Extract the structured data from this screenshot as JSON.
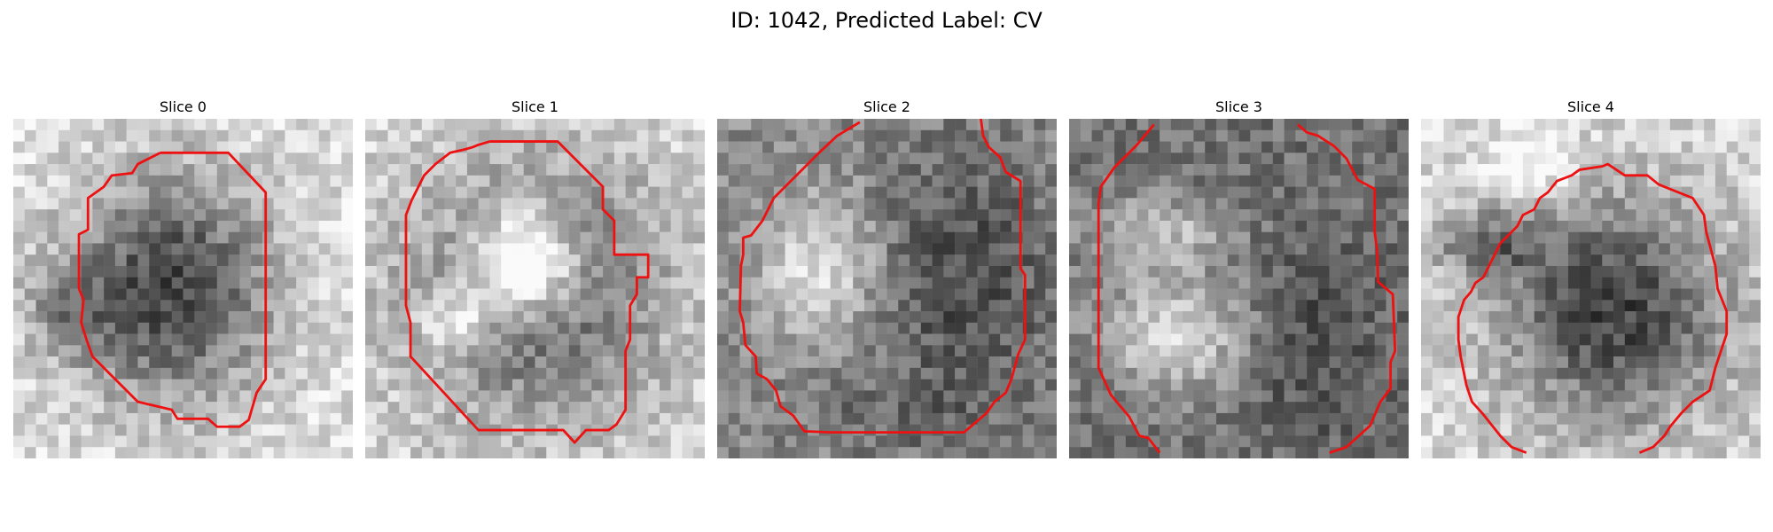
{
  "figure": {
    "title": "ID: 1042, Predicted Label: CV"
  },
  "slices": [
    {
      "label": "Slice 0"
    },
    {
      "label": "Slice 1"
    },
    {
      "label": "Slice 2"
    },
    {
      "label": "Slice 3"
    },
    {
      "label": "Slice 4"
    }
  ],
  "colors": {
    "contour": "#ee1111",
    "background": "#ffffff"
  }
}
